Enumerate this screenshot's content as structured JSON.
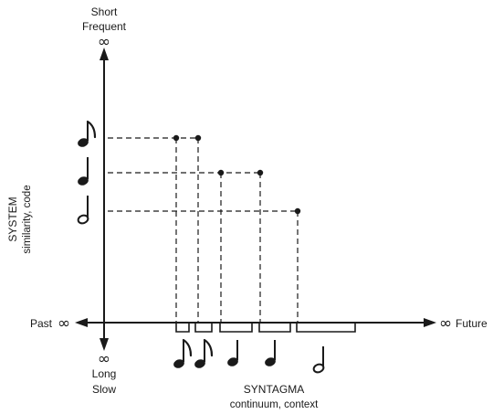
{
  "labels": {
    "top": [
      "Short",
      "Frequent"
    ],
    "top_symbol": "∞",
    "bottom_symbol": "∞",
    "bottom": [
      "Long",
      "Slow"
    ],
    "left": "Past",
    "left_symbol": "∞",
    "right": "Future",
    "right_symbol": "∞",
    "system_title": "SYSTEM",
    "system_sub": "similarity, code",
    "syntagma_title": "SYNTAGMA",
    "syntagma_sub": "continuum, context"
  },
  "system_notes": [
    "eighth-note",
    "quarter-note",
    "half-note"
  ],
  "syntagma_notes": [
    "eighth-note",
    "eighth-note",
    "quarter-note",
    "quarter-note",
    "half-note"
  ]
}
